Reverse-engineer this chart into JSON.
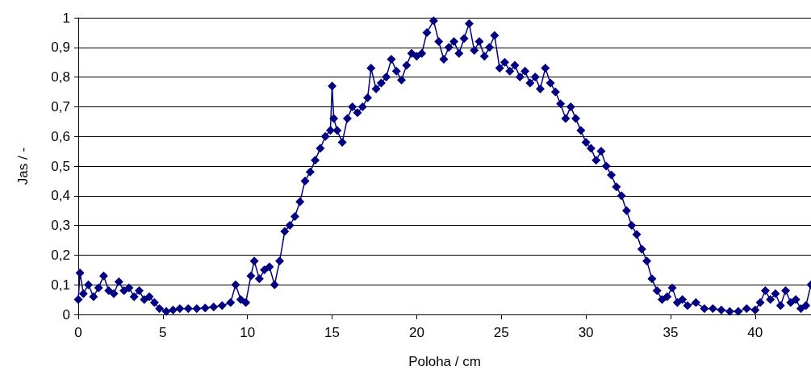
{
  "chart_data": {
    "type": "line",
    "xlabel": "Poloha / cm",
    "ylabel": "Jas / -",
    "marker": "diamond",
    "line_style": "solid",
    "grid": "y",
    "xlim": [
      0,
      43.3
    ],
    "xticks": [
      0,
      5,
      10,
      15,
      20,
      25,
      30,
      35,
      40
    ],
    "ylim": [
      0,
      1
    ],
    "yticks": [
      0,
      {
        "value": 0.1,
        "label": "0,1"
      },
      {
        "value": 0.2,
        "label": "0,2"
      },
      {
        "value": 0.3,
        "label": "0,3"
      },
      {
        "value": 0.4,
        "label": "0,4"
      },
      {
        "value": 0.5,
        "label": "0,5"
      },
      {
        "value": 0.6,
        "label": "0,6"
      },
      {
        "value": 0.7,
        "label": "0,7"
      },
      {
        "value": 0.8,
        "label": "0,8"
      },
      {
        "value": 0.9,
        "label": "0,9"
      },
      1
    ],
    "series": [
      {
        "color": "#000080",
        "x": [
          0,
          0.1,
          0.3,
          0.6,
          0.9,
          1.2,
          1.5,
          1.8,
          2.1,
          2.4,
          2.7,
          3.0,
          3.3,
          3.6,
          3.9,
          4.2,
          4.5,
          4.8,
          5.2,
          5.6,
          6.0,
          6.5,
          7,
          7.5,
          8,
          8.5,
          9,
          9.3,
          9.6,
          9.9,
          10.2,
          10.4,
          10.7,
          11,
          11.3,
          11.6,
          11.9,
          12.2,
          12.5,
          12.8,
          13.1,
          13.4,
          13.7,
          14,
          14.3,
          14.6,
          14.9,
          15.0,
          15.1,
          15.3,
          15.6,
          15.9,
          16.2,
          16.5,
          16.8,
          17.1,
          17.3,
          17.6,
          17.9,
          18.2,
          18.5,
          18.8,
          19.1,
          19.4,
          19.7,
          20,
          20.3,
          20.6,
          21,
          21.3,
          21.6,
          21.9,
          22.2,
          22.5,
          22.8,
          23.1,
          23.4,
          23.7,
          24,
          24.3,
          24.6,
          24.9,
          25.2,
          25.5,
          25.8,
          26.1,
          26.4,
          26.7,
          27,
          27.3,
          27.6,
          27.9,
          28.2,
          28.5,
          28.8,
          29.1,
          29.4,
          29.7,
          30,
          30.3,
          30.6,
          30.9,
          31.2,
          31.5,
          31.8,
          32.1,
          32.4,
          32.7,
          33,
          33.3,
          33.6,
          33.9,
          34.2,
          34.5,
          34.8,
          35.1,
          35.4,
          35.7,
          36,
          36.5,
          37,
          37.5,
          38,
          38.5,
          39,
          39.5,
          40,
          40.3,
          40.6,
          40.9,
          41.2,
          41.5,
          41.8,
          42.1,
          42.4,
          42.7,
          43,
          43.3
        ],
        "values": [
          0.05,
          0.14,
          0.07,
          0.1,
          0.06,
          0.09,
          0.13,
          0.08,
          0.07,
          0.11,
          0.08,
          0.09,
          0.06,
          0.08,
          0.05,
          0.06,
          0.04,
          0.02,
          0.01,
          0.015,
          0.02,
          0.02,
          0.02,
          0.022,
          0.025,
          0.03,
          0.04,
          0.1,
          0.05,
          0.04,
          0.13,
          0.18,
          0.12,
          0.15,
          0.16,
          0.1,
          0.18,
          0.28,
          0.3,
          0.33,
          0.38,
          0.45,
          0.48,
          0.52,
          0.56,
          0.6,
          0.62,
          0.77,
          0.66,
          0.62,
          0.58,
          0.66,
          0.7,
          0.68,
          0.7,
          0.73,
          0.83,
          0.76,
          0.78,
          0.8,
          0.86,
          0.82,
          0.79,
          0.84,
          0.88,
          0.87,
          0.88,
          0.95,
          0.99,
          0.92,
          0.86,
          0.9,
          0.92,
          0.88,
          0.93,
          0.98,
          0.89,
          0.92,
          0.87,
          0.9,
          0.94,
          0.83,
          0.85,
          0.82,
          0.84,
          0.8,
          0.82,
          0.78,
          0.8,
          0.76,
          0.83,
          0.78,
          0.75,
          0.71,
          0.66,
          0.7,
          0.66,
          0.62,
          0.58,
          0.56,
          0.52,
          0.55,
          0.5,
          0.47,
          0.43,
          0.4,
          0.35,
          0.3,
          0.27,
          0.22,
          0.18,
          0.12,
          0.08,
          0.05,
          0.06,
          0.09,
          0.04,
          0.05,
          0.03,
          0.04,
          0.02,
          0.02,
          0.015,
          0.01,
          0.01,
          0.02,
          0.015,
          0.04,
          0.08,
          0.05,
          0.07,
          0.03,
          0.08,
          0.04,
          0.05,
          0.02,
          0.03,
          0.1
        ]
      }
    ]
  }
}
